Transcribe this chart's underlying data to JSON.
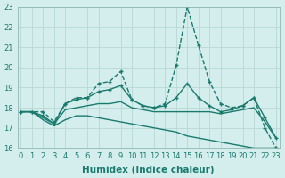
{
  "xlabel": "Humidex (Indice chaleur)",
  "background_color": "#d4eeed",
  "grid_color": "#b8d8d4",
  "line_color": "#1a7a6e",
  "x": [
    0,
    1,
    2,
    3,
    4,
    5,
    6,
    7,
    8,
    9,
    10,
    11,
    12,
    13,
    14,
    15,
    16,
    17,
    18,
    19,
    20,
    21,
    22,
    23
  ],
  "series": [
    {
      "values": [
        17.8,
        17.8,
        17.8,
        17.3,
        18.2,
        18.5,
        18.5,
        19.2,
        19.3,
        19.8,
        18.4,
        18.1,
        18.0,
        18.2,
        20.1,
        23.0,
        21.1,
        19.3,
        18.2,
        18.0,
        18.1,
        18.5,
        17.0,
        16.0
      ],
      "linestyle": "--",
      "marker": true
    },
    {
      "values": [
        17.8,
        17.8,
        17.6,
        17.2,
        18.2,
        18.4,
        18.5,
        18.8,
        18.9,
        19.1,
        18.4,
        18.1,
        18.0,
        18.1,
        18.5,
        19.2,
        18.5,
        18.1,
        17.8,
        17.9,
        18.1,
        18.5,
        17.5,
        16.5
      ],
      "linestyle": "-",
      "marker": true
    },
    {
      "values": [
        17.8,
        17.8,
        17.5,
        17.2,
        17.9,
        18.0,
        18.1,
        18.2,
        18.2,
        18.3,
        18.0,
        17.9,
        17.8,
        17.8,
        17.8,
        17.8,
        17.8,
        17.8,
        17.7,
        17.8,
        17.9,
        18.0,
        17.3,
        16.5
      ],
      "linestyle": "-",
      "marker": false
    },
    {
      "values": [
        17.8,
        17.8,
        17.4,
        17.1,
        17.4,
        17.6,
        17.6,
        17.5,
        17.4,
        17.3,
        17.2,
        17.1,
        17.0,
        16.9,
        16.8,
        16.6,
        16.5,
        16.4,
        16.3,
        16.2,
        16.1,
        16.0,
        16.0,
        16.0
      ],
      "linestyle": "-",
      "marker": false
    }
  ],
  "ylim": [
    16,
    23
  ],
  "xlim_min": -0.3,
  "xlim_max": 23.3,
  "yticks": [
    16,
    17,
    18,
    19,
    20,
    21,
    22,
    23
  ],
  "xticks": [
    0,
    1,
    2,
    3,
    4,
    5,
    6,
    7,
    8,
    9,
    10,
    11,
    12,
    13,
    14,
    15,
    16,
    17,
    18,
    19,
    20,
    21,
    22,
    23
  ],
  "xtick_labels": [
    "0",
    "1",
    "2",
    "3",
    "4",
    "5",
    "6",
    "7",
    "8",
    "9",
    "10",
    "11",
    "12",
    "13",
    "14",
    "15",
    "16",
    "17",
    "18",
    "19",
    "20",
    "21",
    "22",
    "23"
  ],
  "markersize": 2.5,
  "linewidth": 1.0,
  "tick_labelsize": 6,
  "xlabel_fontsize": 7.5
}
